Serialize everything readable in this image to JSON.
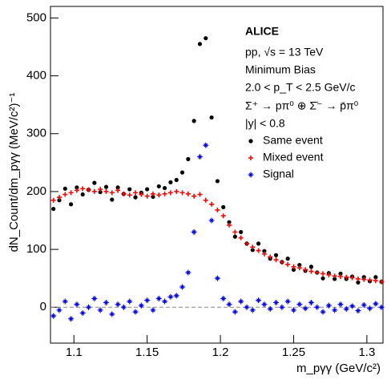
{
  "chart_data": {
    "type": "scatter",
    "x_label": "m_pγγ (GeV/c²)",
    "y_label": "dN_Count/dm_pγγ (MeV/c²)⁻¹",
    "annotations": [
      "ALICE",
      "pp, √s = 13 TeV",
      "Minimum Bias",
      "2.0 < p_T < 2.5 GeV/c",
      "Σ⁺ → pπ⁰ ⊕ Σ̄⁻ → p̄π⁰",
      "|y| < 0.8"
    ],
    "xlim": [
      1.084,
      1.311
    ],
    "ylim": [
      -62,
      520
    ],
    "xticks": [
      1.1,
      1.15,
      1.2,
      1.25,
      1.3
    ],
    "yticks": [
      0,
      100,
      200,
      300,
      400,
      500
    ],
    "x": [
      1.086,
      1.09,
      1.094,
      1.098,
      1.102,
      1.106,
      1.11,
      1.114,
      1.118,
      1.122,
      1.126,
      1.13,
      1.134,
      1.138,
      1.142,
      1.146,
      1.15,
      1.154,
      1.158,
      1.162,
      1.166,
      1.17,
      1.174,
      1.178,
      1.182,
      1.186,
      1.19,
      1.194,
      1.198,
      1.202,
      1.206,
      1.21,
      1.214,
      1.218,
      1.222,
      1.226,
      1.23,
      1.234,
      1.238,
      1.242,
      1.246,
      1.25,
      1.254,
      1.258,
      1.262,
      1.266,
      1.27,
      1.274,
      1.278,
      1.282,
      1.286,
      1.29,
      1.294,
      1.298,
      1.302,
      1.306,
      1.31
    ],
    "series": [
      {
        "name": "Same event",
        "color": "#000000",
        "values": [
          170,
          185,
          205,
          178,
          207,
          195,
          203,
          215,
          199,
          208,
          186,
          207,
          196,
          204,
          190,
          198,
          204,
          191,
          209,
          206,
          216,
          220,
          233,
          256,
          322,
          455,
          465,
          328,
          218,
          173,
          147,
          122,
          130,
          110,
          99,
          110,
          97,
          84,
          90,
          78,
          84,
          65,
          73,
          63,
          70,
          60,
          50,
          59,
          49,
          58,
          49,
          53,
          43,
          52,
          45,
          52,
          44
        ]
      },
      {
        "name": "Mixed event",
        "color": "#ff0000",
        "values": [
          185,
          190,
          195,
          198,
          202,
          205,
          203,
          200,
          204,
          200,
          198,
          202,
          196,
          194,
          198,
          195,
          192,
          196,
          194,
          196,
          198,
          200,
          198,
          196,
          192,
          195,
          185,
          178,
          168,
          158,
          142,
          130,
          120,
          110,
          104,
          98,
          92,
          87,
          82,
          78,
          74,
          70,
          68,
          65,
          62,
          60,
          58,
          56,
          54,
          53,
          52,
          51,
          49,
          48,
          47,
          46,
          44
        ]
      },
      {
        "name": "Signal",
        "color": "#0000ff",
        "values": [
          -15,
          -5,
          10,
          -20,
          5,
          -10,
          0,
          15,
          -5,
          8,
          -12,
          5,
          0,
          10,
          -8,
          3,
          12,
          -5,
          15,
          10,
          18,
          20,
          35,
          60,
          130,
          260,
          280,
          150,
          50,
          15,
          5,
          -8,
          10,
          0,
          -5,
          12,
          5,
          -3,
          8,
          0,
          10,
          -5,
          5,
          -2,
          8,
          0,
          -8,
          3,
          -5,
          5,
          -3,
          2,
          -6,
          4,
          -2,
          6,
          0
        ]
      }
    ]
  }
}
